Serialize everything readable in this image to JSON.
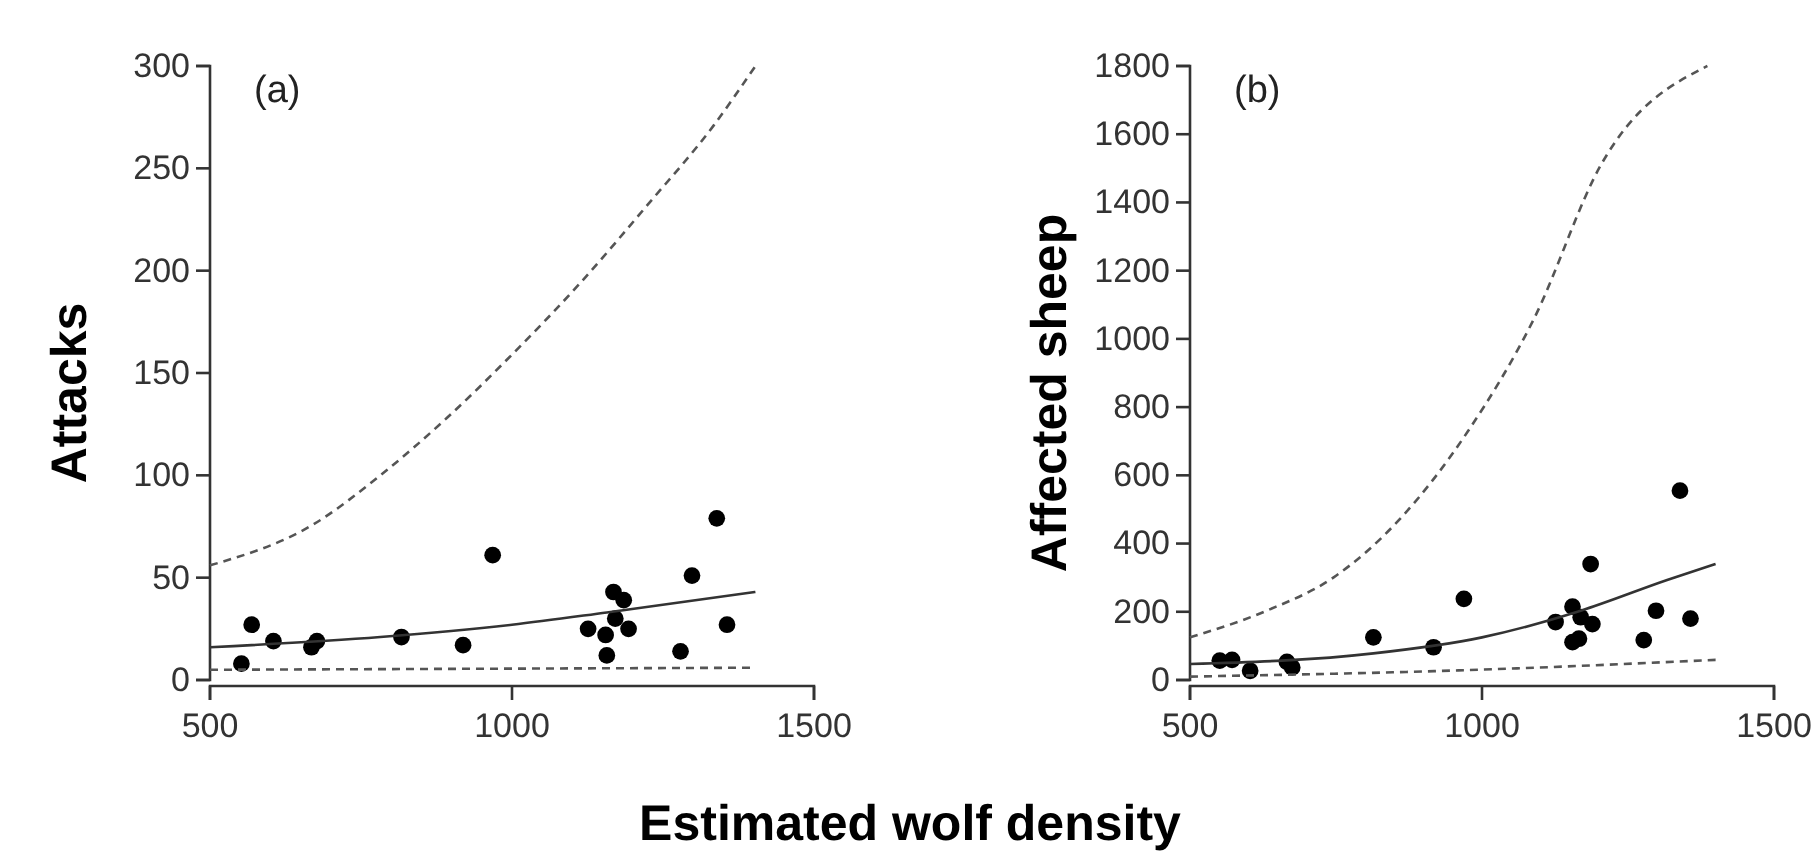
{
  "chart_data": [
    {
      "type": "scatter",
      "ylabel": "Attacks",
      "xlabel": "Estimated wolf density",
      "annotations": [
        "(a)"
      ],
      "xlim": [
        500,
        1500
      ],
      "xticks": [
        500,
        1000,
        1500
      ],
      "ylim": [
        0,
        300
      ],
      "yticks": [
        0,
        50,
        100,
        150,
        200,
        250,
        300
      ],
      "grid": false,
      "series": [
        {
          "color": "#000000",
          "marker": "circle",
          "x": [
            552,
            569,
            605,
            668,
            677,
            817,
            919,
            968,
            1126,
            1155,
            1157,
            1168,
            1171,
            1185,
            1193,
            1279,
            1298,
            1339,
            1356
          ],
          "values": [
            8,
            27,
            19,
            16,
            19,
            21,
            17,
            61,
            25,
            22,
            12,
            43,
            30,
            39,
            25,
            14,
            51,
            79,
            27
          ]
        },
        {
          "type": "line",
          "color": "#333333",
          "line_style": "solid",
          "x": [
            500,
            782,
            1000,
            1157,
            1403
          ],
          "values": [
            16,
            21,
            27,
            33,
            43
          ]
        },
        {
          "type": "line",
          "color": "#555555",
          "line_style": "dashed",
          "x": [
            500,
            671,
            782,
            892,
            1000,
            1110,
            1224,
            1334,
            1403
          ],
          "values": [
            56,
            76,
            100,
            128,
            159,
            193,
            232,
            271,
            300
          ]
        },
        {
          "type": "line",
          "color": "#555555",
          "line_style": "dashed",
          "x": [
            500,
            1400
          ],
          "values": [
            5,
            6
          ]
        }
      ]
    },
    {
      "type": "scatter",
      "ylabel": "Affected sheep",
      "annotations": [
        "(b)"
      ],
      "xlim": [
        500,
        1500
      ],
      "xticks": [
        500,
        1000,
        1500
      ],
      "ylim": [
        0,
        1800
      ],
      "yticks": [
        0,
        200,
        400,
        600,
        800,
        1000,
        1200,
        1400,
        1600,
        1800
      ],
      "grid": false,
      "series": [
        {
          "color": "#000000",
          "marker": "circle",
          "x": [
            551,
            572,
            603,
            666,
            675,
            814,
            917,
            969,
            1126,
            1155,
            1155,
            1166,
            1169,
            1186,
            1189,
            1277,
            1298,
            1339,
            1357
          ],
          "values": [
            57,
            59,
            27,
            53,
            37,
            125,
            96,
            238,
            170,
            215,
            111,
            121,
            184,
            340,
            164,
            117,
            203,
            555,
            180
          ]
        },
        {
          "type": "line",
          "color": "#333333",
          "line_style": "solid",
          "x": [
            500,
            814,
            1000,
            1169,
            1317,
            1400
          ],
          "values": [
            47,
            78,
            125,
            203,
            293,
            340
          ]
        },
        {
          "type": "line",
          "color": "#555555",
          "line_style": "dashed",
          "x": [
            500,
            631,
            746,
            860,
            975,
            1089,
            1203,
            1386
          ],
          "values": [
            125,
            203,
            301,
            473,
            727,
            1059,
            1508,
            1800
          ]
        },
        {
          "type": "line",
          "color": "#555555",
          "line_style": "dashed",
          "x": [
            500,
            975,
            1400
          ],
          "values": [
            10,
            29,
            59
          ]
        }
      ]
    }
  ]
}
